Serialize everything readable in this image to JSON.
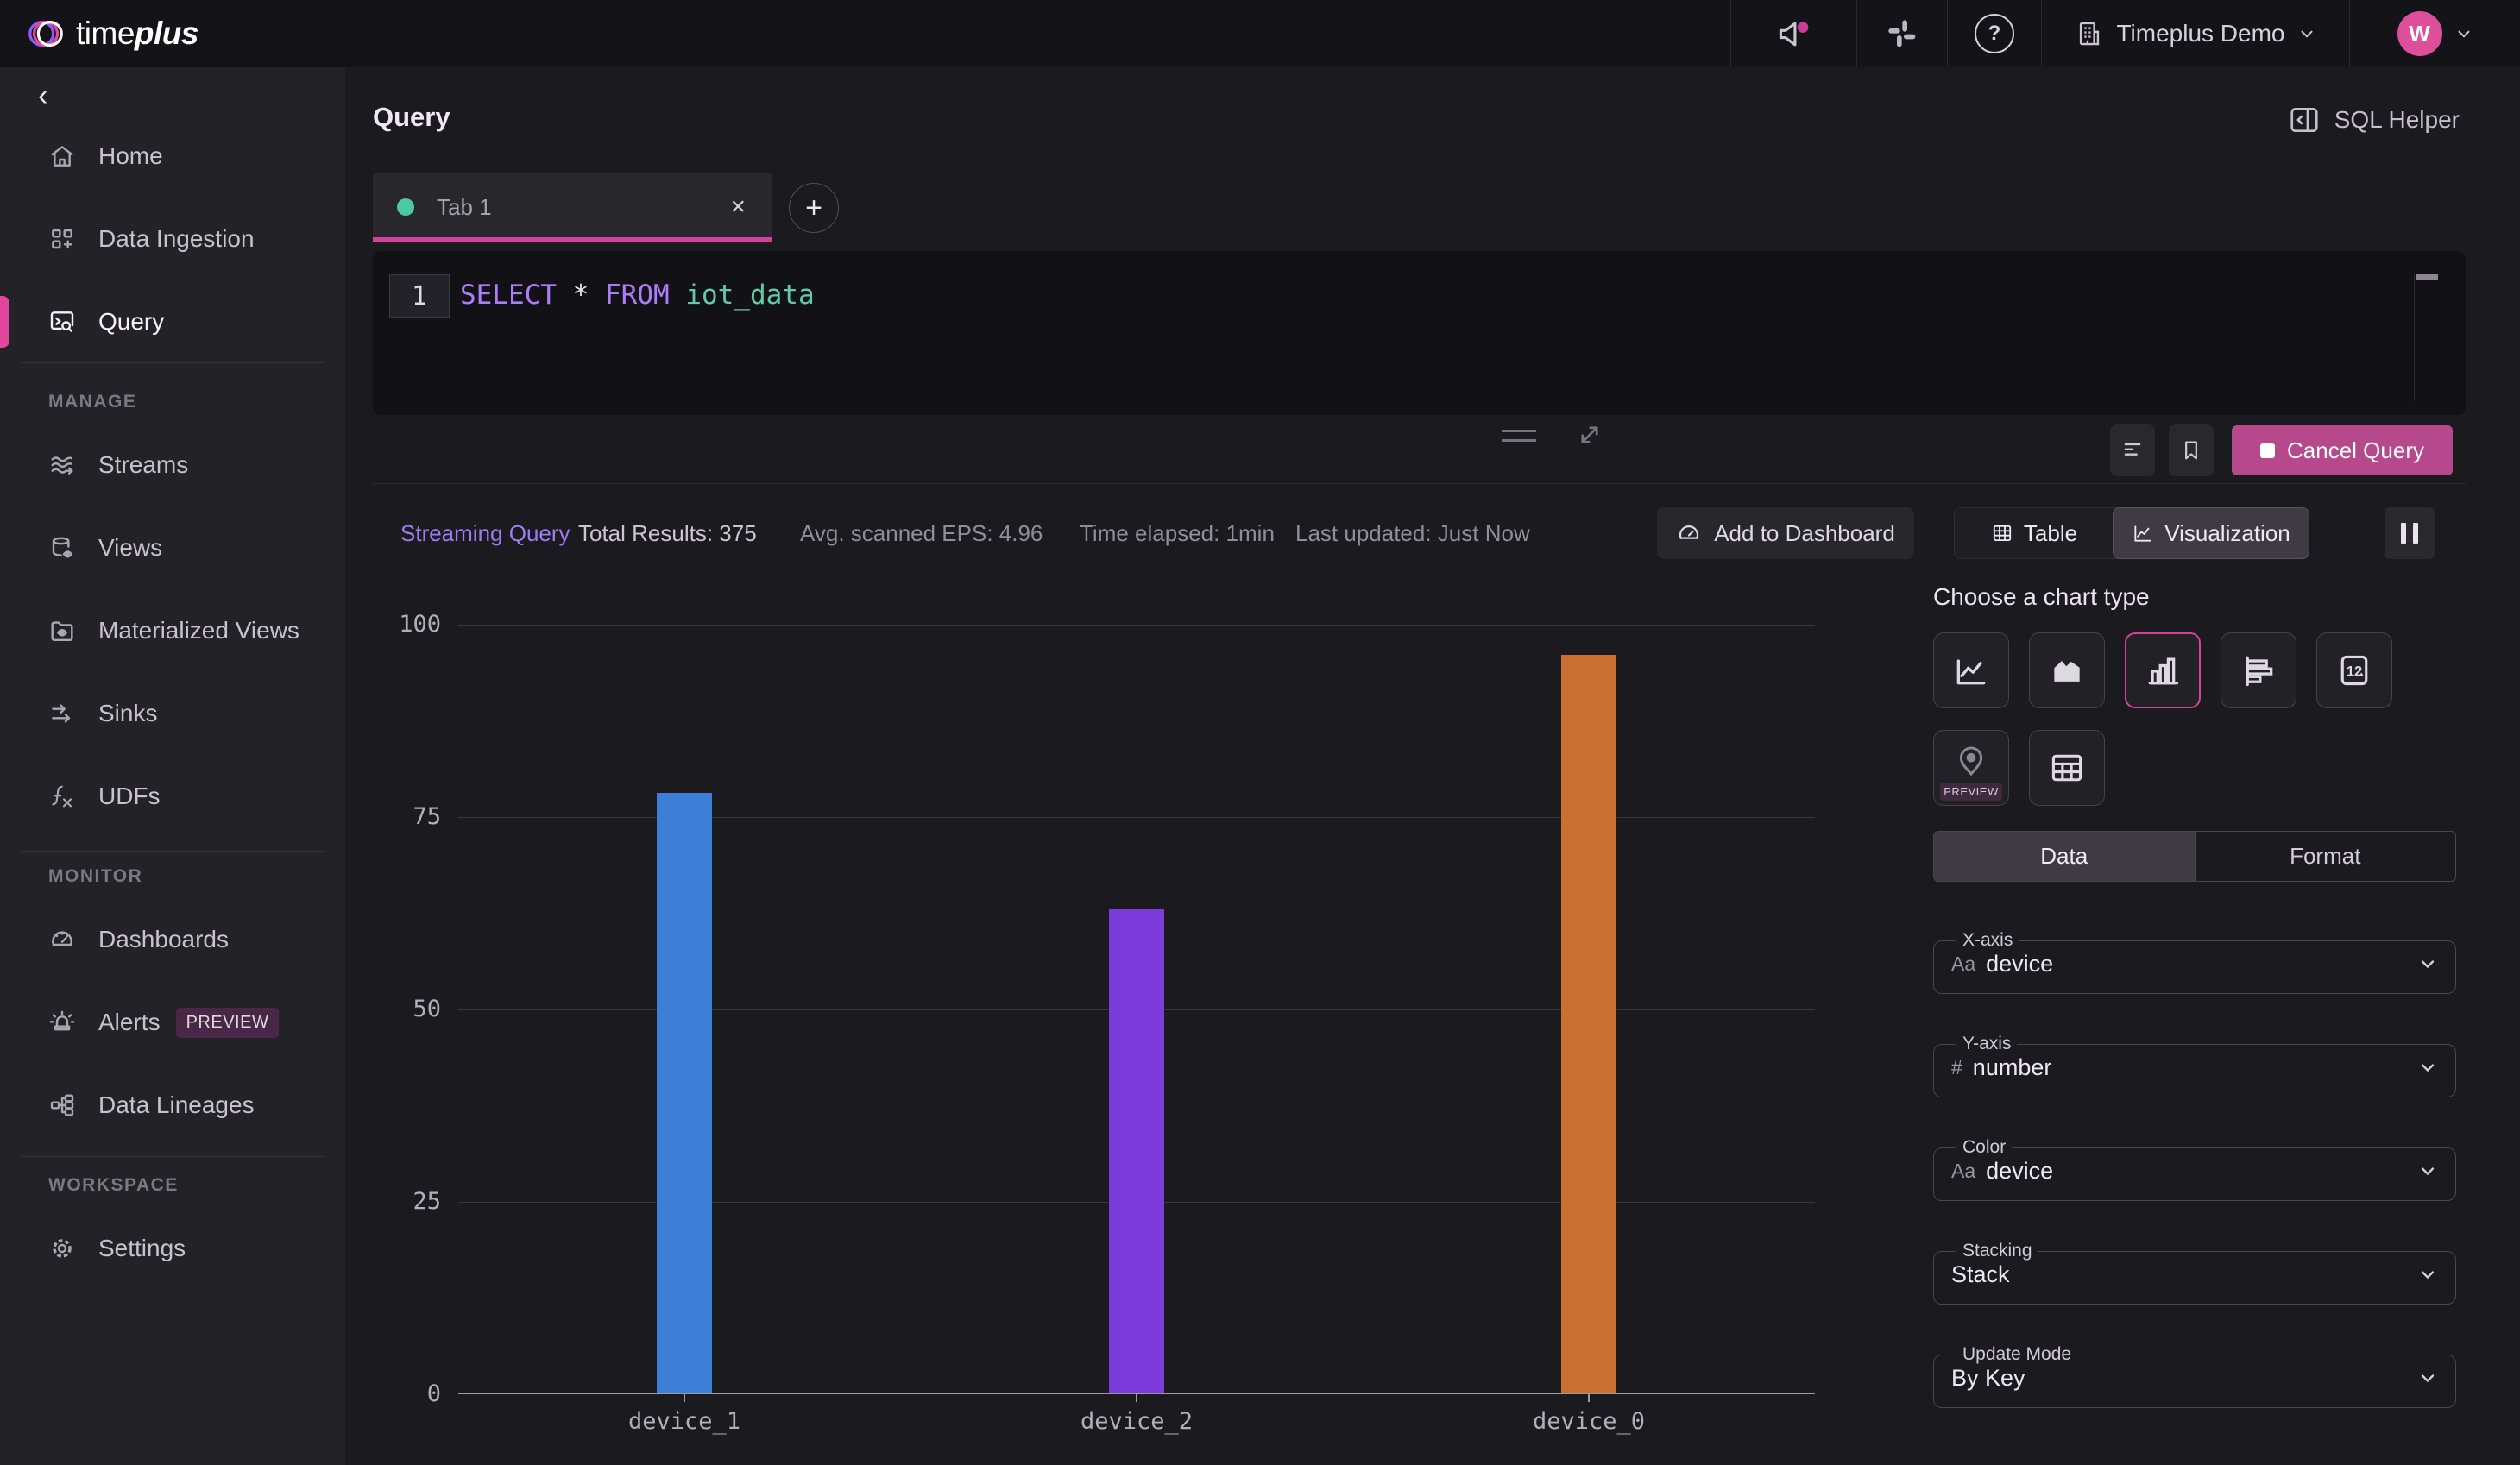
{
  "topbar": {
    "brand": {
      "word_regular": "time",
      "word_bold": "plus"
    },
    "help_glyph": "?",
    "workspace": {
      "label": "Timeplus Demo"
    },
    "avatar_initial": "W"
  },
  "sidebar": {
    "collapse_glyph": "‹",
    "sections": [
      {
        "items": [
          {
            "label": "Home"
          },
          {
            "label": "Data Ingestion"
          },
          {
            "label": "Query",
            "active": true
          }
        ]
      },
      {
        "header": "MANAGE",
        "items": [
          {
            "label": "Streams"
          },
          {
            "label": "Views"
          },
          {
            "label": "Materialized Views"
          },
          {
            "label": "Sinks"
          },
          {
            "label": "UDFs"
          }
        ]
      },
      {
        "header": "MONITOR",
        "items": [
          {
            "label": "Dashboards"
          },
          {
            "label": "Alerts",
            "badge": "PREVIEW"
          },
          {
            "label": "Data Lineages"
          }
        ]
      },
      {
        "header": "WORKSPACE",
        "items": [
          {
            "label": "Settings"
          }
        ]
      }
    ]
  },
  "page": {
    "title": "Query",
    "sql_helper": "SQL Helper",
    "tab": {
      "label": "Tab 1",
      "close_glyph": "×",
      "add_glyph": "+"
    },
    "editor": {
      "line_number": "1",
      "tokens": {
        "kw1": "SELECT",
        "star": "*",
        "kw2": "FROM",
        "ident": "iot_data"
      }
    },
    "cancel_button": "Cancel Query",
    "status": {
      "mode": "Streaming Query",
      "total": "Total Results: 375",
      "eps": "Avg. scanned EPS: 4.96",
      "elapsed": "Time elapsed: 1min",
      "updated": "Last updated: Just Now"
    },
    "toolbar": {
      "add_to_dashboard": "Add to Dashboard",
      "table": "Table",
      "visualization": "Visualization"
    }
  },
  "panel": {
    "heading": "Choose a chart type",
    "preview_badge": "PREVIEW",
    "single_value_glyph": "12",
    "tabs": {
      "data": "Data",
      "format": "Format"
    },
    "fields": [
      {
        "label": "X-axis",
        "prefix": "Aa",
        "value": "device"
      },
      {
        "label": "Y-axis",
        "prefix": "#",
        "value": "number"
      },
      {
        "label": "Color",
        "prefix": "Aa",
        "value": "device"
      },
      {
        "label": "Stacking",
        "prefix": null,
        "value": "Stack"
      },
      {
        "label": "Update Mode",
        "prefix": null,
        "value": "By Key"
      }
    ]
  },
  "chart_data": {
    "type": "bar",
    "categories": [
      "device_1",
      "device_2",
      "device_0"
    ],
    "values": [
      78,
      63,
      96
    ],
    "colors": [
      "#3d7ed8",
      "#7c3bdb",
      "#c96f31"
    ],
    "title": "",
    "xlabel": "",
    "ylabel": "",
    "ylim": [
      0,
      100
    ],
    "yticks": [
      0,
      25,
      50,
      75,
      100
    ],
    "grid": "horizontal",
    "legend": "none"
  },
  "colors": {
    "accent_pink": "#d6409f",
    "cancel_button": "#b5498c",
    "tab_dot_green": "#4cc9a0",
    "streaming_text": "#9d7bf0",
    "sql_keyword": "#ab7df6",
    "sql_identifier": "#63caa9",
    "avatar_pink": "#dd4f9b"
  }
}
